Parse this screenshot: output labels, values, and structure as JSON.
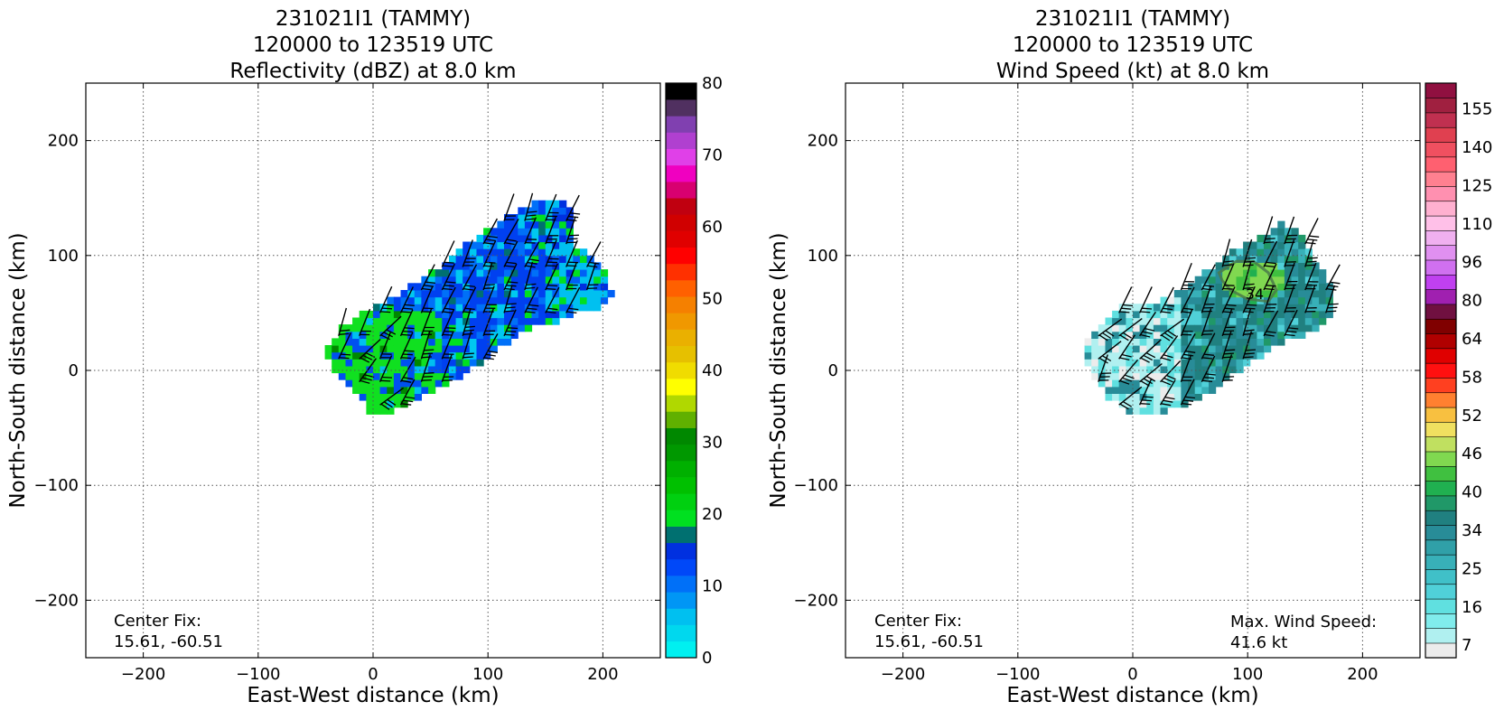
{
  "chart_data": [
    {
      "type": "heatmap",
      "title_lines": [
        "231021I1 (TAMMY)",
        "120000 to 123519 UTC",
        "Reflectivity (dBZ) at 8.0 km"
      ],
      "xlabel": "East-West distance (km)",
      "ylabel": "North-South distance (km)",
      "xlim": [
        -250,
        250
      ],
      "ylim": [
        -250,
        250
      ],
      "xticks": [
        -200,
        -100,
        0,
        100,
        200
      ],
      "yticks": [
        -200,
        -100,
        0,
        100,
        200
      ],
      "xtick_labels": [
        "−200",
        "−100",
        "0",
        "100",
        "200"
      ],
      "ytick_labels": [
        "−200",
        "−100",
        "0",
        "100",
        "200"
      ],
      "grid": true,
      "annotation_lines": [
        "Center Fix:",
        "15.61, -60.51"
      ],
      "echo_region": {
        "outline_km": [
          [
            -40,
            20
          ],
          [
            -30,
            35
          ],
          [
            -10,
            50
          ],
          [
            20,
            65
          ],
          [
            50,
            85
          ],
          [
            80,
            110
          ],
          [
            110,
            130
          ],
          [
            140,
            145
          ],
          [
            170,
            148
          ],
          [
            175,
            110
          ],
          [
            200,
            90
          ],
          [
            210,
            65
          ],
          [
            200,
            55
          ],
          [
            175,
            50
          ],
          [
            160,
            40
          ],
          [
            140,
            38
          ],
          [
            110,
            20
          ],
          [
            85,
            0
          ],
          [
            60,
            -15
          ],
          [
            40,
            -25
          ],
          [
            20,
            -35
          ],
          [
            0,
            -40
          ],
          [
            -15,
            -20
          ],
          [
            -30,
            -5
          ],
          [
            -40,
            10
          ]
        ],
        "dominant_dbz": [
          10,
          25
        ]
      },
      "colorbar": {
        "vmin": 0,
        "vmax": 80,
        "tick_values": [
          0,
          10,
          20,
          30,
          40,
          50,
          60,
          70,
          80
        ],
        "tick_labels": [
          "0",
          "10",
          "20",
          "30",
          "40",
          "50",
          "60",
          "70",
          "80"
        ],
        "colors": [
          "#00f0f0",
          "#00d8ee",
          "#00c0f0",
          "#0096f5",
          "#0070f8",
          "#0048f8",
          "#0030e0",
          "#007070",
          "#00e020",
          "#00d010",
          "#00c000",
          "#00b000",
          "#009800",
          "#008800",
          "#60b000",
          "#b0d800",
          "#ffff00",
          "#f0dc00",
          "#e6c000",
          "#eab000",
          "#f09800",
          "#f58000",
          "#ff6000",
          "#ff3000",
          "#ff0000",
          "#e00000",
          "#d00000",
          "#c00010",
          "#d80070",
          "#f000c0",
          "#e040e8",
          "#b040d0",
          "#8040b0",
          "#503060",
          "#000000"
        ]
      }
    },
    {
      "type": "heatmap",
      "title_lines": [
        "231021I1 (TAMMY)",
        "120000 to 123519 UTC",
        "Wind Speed (kt) at 8.0 km"
      ],
      "xlabel": "East-West distance (km)",
      "ylabel": "North-South distance (km)",
      "xlim": [
        -250,
        250
      ],
      "ylim": [
        -250,
        250
      ],
      "xticks": [
        -200,
        -100,
        0,
        100,
        200
      ],
      "yticks": [
        -200,
        -100,
        0,
        100,
        200
      ],
      "xtick_labels": [
        "−200",
        "−100",
        "0",
        "100",
        "200"
      ],
      "ytick_labels": [
        "−200",
        "−100",
        "0",
        "100",
        "200"
      ],
      "grid": true,
      "annotation_lines": [
        "Center Fix:",
        "15.61, -60.51"
      ],
      "max_wind_lines": [
        "Max. Wind Speed:",
        "41.6 kt"
      ],
      "max_wind_kt": 41.6,
      "contour_label": "34",
      "echo_region": {
        "outline_km": [
          [
            -40,
            25
          ],
          [
            -30,
            40
          ],
          [
            -10,
            55
          ],
          [
            20,
            60
          ],
          [
            50,
            75
          ],
          [
            80,
            100
          ],
          [
            110,
            115
          ],
          [
            130,
            130
          ],
          [
            145,
            120
          ],
          [
            160,
            95
          ],
          [
            175,
            70
          ],
          [
            172,
            45
          ],
          [
            150,
            30
          ],
          [
            130,
            25
          ],
          [
            100,
            5
          ],
          [
            80,
            -10
          ],
          [
            60,
            -25
          ],
          [
            30,
            -35
          ],
          [
            0,
            -38
          ],
          [
            -20,
            -25
          ],
          [
            -35,
            -5
          ],
          [
            -45,
            15
          ]
        ],
        "dominant_kt": [
          16,
          34
        ]
      },
      "colorbar": {
        "tick_labels": [
          "7",
          "16",
          "25",
          "34",
          "40",
          "46",
          "52",
          "58",
          "64",
          "80",
          "96",
          "110",
          "125",
          "140",
          "155"
        ],
        "colors": [
          "#ececec",
          "#b0f0f0",
          "#80ecec",
          "#60e0e0",
          "#50d0d8",
          "#40c0c8",
          "#38b0b8",
          "#30a0a8",
          "#288c98",
          "#208080",
          "#209868",
          "#20b050",
          "#40c040",
          "#80d850",
          "#c0e060",
          "#f0e060",
          "#f8c040",
          "#ff8030",
          "#ff4020",
          "#ff1010",
          "#e00000",
          "#b00000",
          "#800000",
          "#701040",
          "#a020b0",
          "#c040f0",
          "#d070f0",
          "#e090f0",
          "#f0b0f0",
          "#ffc0e8",
          "#ffb0d0",
          "#ff90b0",
          "#ff8090",
          "#ff6070",
          "#f05060",
          "#e04050",
          "#c03050",
          "#a02040",
          "#901040"
        ]
      }
    }
  ]
}
